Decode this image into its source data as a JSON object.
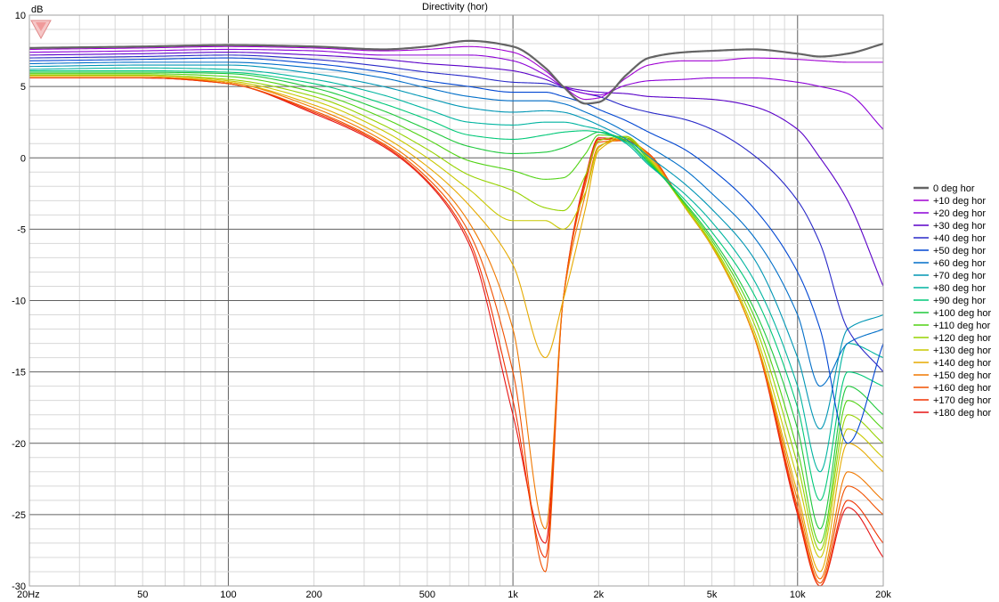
{
  "chart_data": {
    "type": "line",
    "title": "Directivity (hor)",
    "ylabel": "dB",
    "xlabel": "",
    "x_scale": "log",
    "xlim": [
      20,
      20000
    ],
    "ylim": [
      -30,
      10
    ],
    "grid": true,
    "legend_position": "right",
    "x_ticks": [
      {
        "value": 20,
        "label": "20Hz"
      },
      {
        "value": 50,
        "label": "50"
      },
      {
        "value": 100,
        "label": "100"
      },
      {
        "value": 200,
        "label": "200"
      },
      {
        "value": 500,
        "label": "500"
      },
      {
        "value": 1000,
        "label": "1k"
      },
      {
        "value": 2000,
        "label": "2k"
      },
      {
        "value": 5000,
        "label": "5k"
      },
      {
        "value": 10000,
        "label": "10k"
      },
      {
        "value": 20000,
        "label": "20k"
      }
    ],
    "y_ticks": [
      {
        "value": 10,
        "label": "10"
      },
      {
        "value": 5,
        "label": "5"
      },
      {
        "value": 0,
        "label": "0"
      },
      {
        "value": -5,
        "label": "-5"
      },
      {
        "value": -10,
        "label": "-10"
      },
      {
        "value": -15,
        "label": "-15"
      },
      {
        "value": -20,
        "label": "-20"
      },
      {
        "value": -25,
        "label": "-25"
      },
      {
        "value": -30,
        "label": "-30"
      }
    ],
    "x": [
      20,
      50,
      100,
      200,
      350,
      500,
      700,
      1000,
      1300,
      1500,
      1800,
      2000,
      2500,
      3000,
      4000,
      5000,
      7000,
      10000,
      12000,
      15000,
      20000
    ],
    "series": [
      {
        "name": "0 deg hor",
        "color": "#646464",
        "values": [
          7.7,
          7.8,
          7.9,
          7.8,
          7.6,
          7.8,
          8.2,
          7.8,
          6.3,
          5.0,
          3.8,
          3.9,
          5.8,
          7.0,
          7.4,
          7.5,
          7.6,
          7.3,
          7.1,
          7.3,
          8.0
        ]
      },
      {
        "name": "+10 deg hor",
        "color": "#a000d2",
        "values": [
          7.6,
          7.7,
          7.8,
          7.7,
          7.5,
          7.6,
          7.8,
          7.4,
          6.1,
          5.0,
          4.1,
          4.2,
          5.6,
          6.5,
          6.8,
          6.8,
          7.0,
          6.9,
          6.8,
          6.7,
          6.7
        ]
      },
      {
        "name": "+20 deg hor",
        "color": "#8c00d7",
        "values": [
          7.4,
          7.5,
          7.6,
          7.5,
          7.2,
          7.2,
          7.2,
          6.8,
          5.8,
          5.0,
          4.5,
          4.4,
          5.1,
          5.4,
          5.5,
          5.6,
          5.6,
          5.3,
          5.0,
          4.5,
          2.0
        ]
      },
      {
        "name": "+30 deg hor",
        "color": "#5a00c8",
        "values": [
          7.2,
          7.3,
          7.4,
          7.2,
          6.9,
          6.6,
          6.4,
          6.1,
          5.5,
          5.0,
          4.7,
          4.6,
          4.5,
          4.3,
          4.2,
          4.1,
          3.6,
          2.0,
          0.0,
          -3.0,
          -9.0
        ]
      },
      {
        "name": "+40 deg hor",
        "color": "#2828c8",
        "values": [
          7.0,
          7.1,
          7.2,
          6.9,
          6.4,
          6.0,
          5.7,
          5.3,
          5.2,
          4.9,
          4.5,
          4.3,
          3.6,
          3.2,
          2.7,
          2.0,
          0.2,
          -3.0,
          -6.0,
          -12.0,
          -15.0
        ]
      },
      {
        "name": "+50 deg hor",
        "color": "#0046d2",
        "values": [
          6.8,
          6.9,
          7.0,
          6.6,
          6.0,
          5.4,
          5.0,
          4.6,
          4.6,
          4.3,
          3.8,
          3.4,
          2.6,
          1.8,
          0.6,
          -0.8,
          -3.5,
          -8.0,
          -12.0,
          -20.0,
          -13.0
        ]
      },
      {
        "name": "+60 deg hor",
        "color": "#006ec8",
        "values": [
          6.6,
          6.7,
          6.7,
          6.3,
          5.6,
          4.9,
          4.3,
          4.0,
          4.0,
          3.8,
          3.2,
          2.8,
          1.8,
          0.8,
          -0.8,
          -2.5,
          -5.5,
          -11.0,
          -16.0,
          -13.0,
          -12.0
        ]
      },
      {
        "name": "+70 deg hor",
        "color": "#0096b4",
        "values": [
          6.4,
          6.5,
          6.5,
          5.9,
          5.0,
          4.2,
          3.5,
          3.2,
          3.3,
          3.2,
          2.7,
          2.3,
          1.3,
          0.1,
          -1.8,
          -3.6,
          -7.0,
          -14.0,
          -19.0,
          -12.0,
          -11.0
        ]
      },
      {
        "name": "+80 deg hor",
        "color": "#00b4a0",
        "values": [
          6.2,
          6.3,
          6.2,
          5.5,
          4.4,
          3.4,
          2.5,
          2.3,
          2.5,
          2.5,
          2.2,
          2.0,
          1.0,
          -0.5,
          -2.5,
          -4.5,
          -8.5,
          -16.0,
          -22.0,
          -13.0,
          -14.0
        ]
      },
      {
        "name": "+90 deg hor",
        "color": "#00c878",
        "values": [
          6.1,
          6.1,
          6.0,
          5.2,
          3.8,
          2.7,
          1.6,
          1.3,
          1.6,
          1.8,
          1.9,
          1.8,
          1.1,
          -0.4,
          -2.9,
          -5.2,
          -9.5,
          -17.5,
          -24.0,
          -15.0,
          -16.0
        ]
      },
      {
        "name": "+100 deg hor",
        "color": "#1ec83c",
        "values": [
          6.0,
          6.0,
          5.9,
          4.9,
          3.3,
          2.0,
          0.8,
          0.3,
          0.4,
          0.7,
          1.4,
          1.8,
          1.2,
          -0.3,
          -3.1,
          -5.6,
          -10.5,
          -19.0,
          -26.0,
          -16.0,
          -18.0
        ]
      },
      {
        "name": "+110 deg hor",
        "color": "#50d214",
        "values": [
          5.9,
          5.9,
          5.7,
          4.6,
          2.8,
          1.3,
          -0.2,
          -0.9,
          -1.5,
          -1.4,
          0.3,
          1.6,
          1.4,
          -0.2,
          -3.2,
          -5.8,
          -11.0,
          -20.5,
          -27.0,
          -17.0,
          -19.0
        ]
      },
      {
        "name": "+120 deg hor",
        "color": "#96d200",
        "values": [
          5.8,
          5.8,
          5.5,
          4.3,
          2.3,
          0.6,
          -1.2,
          -2.3,
          -3.5,
          -3.7,
          -1.2,
          1.2,
          1.5,
          -0.1,
          -3.3,
          -6.0,
          -11.5,
          -21.5,
          -27.5,
          -18.0,
          -20.0
        ]
      },
      {
        "name": "+130 deg hor",
        "color": "#c8c800",
        "values": [
          5.8,
          5.8,
          5.4,
          4.0,
          1.9,
          0.0,
          -2.2,
          -4.4,
          -4.4,
          -5.0,
          -2.4,
          0.7,
          1.5,
          0.0,
          -3.4,
          -6.1,
          -12.0,
          -22.5,
          -28.0,
          -19.0,
          -21.0
        ]
      },
      {
        "name": "+140 deg hor",
        "color": "#e6aa00",
        "values": [
          5.7,
          5.7,
          5.3,
          3.7,
          1.5,
          -0.6,
          -3.3,
          -7.5,
          -14.0,
          -10.0,
          -3.5,
          0.5,
          1.4,
          0.1,
          -3.4,
          -6.2,
          -12.3,
          -23.5,
          -29.0,
          -20.0,
          -22.0
        ]
      },
      {
        "name": "+150 deg hor",
        "color": "#f07800",
        "values": [
          5.7,
          5.7,
          5.3,
          3.5,
          1.2,
          -1.1,
          -4.5,
          -12.0,
          -26.0,
          -10.0,
          -2.5,
          0.8,
          1.3,
          0.2,
          -3.4,
          -6.2,
          -12.4,
          -24.0,
          -29.5,
          -22.0,
          -24.0
        ]
      },
      {
        "name": "+160 deg hor",
        "color": "#f05000",
        "values": [
          5.7,
          5.7,
          5.2,
          3.3,
          1.0,
          -1.4,
          -5.2,
          -15.0,
          -29.0,
          -10.0,
          -1.8,
          1.1,
          1.2,
          0.3,
          -3.4,
          -6.2,
          -12.4,
          -24.5,
          -29.8,
          -23.0,
          -25.0
        ]
      },
      {
        "name": "+170 deg hor",
        "color": "#f03200",
        "values": [
          5.6,
          5.6,
          5.2,
          3.2,
          0.9,
          -1.6,
          -5.7,
          -17.0,
          -28.0,
          -10.0,
          -1.5,
          1.3,
          1.2,
          0.3,
          -3.4,
          -6.2,
          -12.4,
          -24.8,
          -30.0,
          -24.0,
          -27.0
        ]
      },
      {
        "name": "+180 deg hor",
        "color": "#e61414",
        "values": [
          5.6,
          5.6,
          5.2,
          3.1,
          0.8,
          -1.7,
          -6.0,
          -18.0,
          -27.0,
          -10.0,
          -1.3,
          1.4,
          1.2,
          0.3,
          -3.4,
          -6.2,
          -12.4,
          -25.0,
          -30.0,
          -24.5,
          -28.0
        ]
      }
    ]
  }
}
